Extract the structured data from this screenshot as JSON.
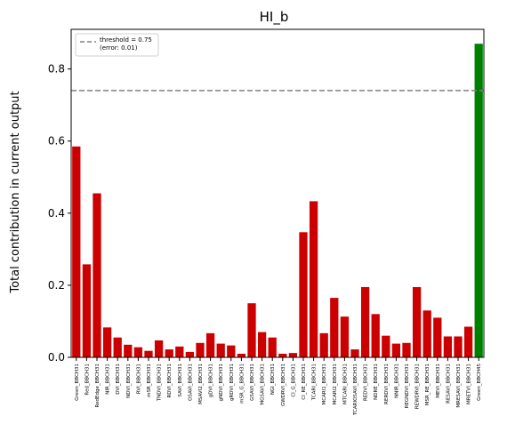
{
  "chart_data": {
    "type": "bar",
    "title": "HI_b",
    "xlabel": "",
    "ylabel": "Total contribution in current output",
    "ylim": [
      0,
      0.91
    ],
    "yticks": [
      0.0,
      0.2,
      0.4,
      0.6,
      0.8
    ],
    "ytick_labels": [
      "0.0",
      "0.2",
      "0.4",
      "0.6",
      "0.8"
    ],
    "grid": false,
    "legend_position": "top-left",
    "threshold": {
      "value": 0.74,
      "label_line1": "threshold = 0.75",
      "label_line2": "(error: 0.01)",
      "color": "#808080"
    },
    "colors": {
      "below": "#cc0000",
      "above": "#008000"
    },
    "categories": [
      "Green_BBCH31",
      "Red_BBCH31",
      "RedEdge_BBCH31",
      "NIR_BBCH31",
      "DVI_BBCH31",
      "NDVI_BBCH31",
      "RVI_BBCH31",
      "mSR_BBCH31",
      "TNDVI_BBCH31",
      "RDVI_BBCH31",
      "SAVI_BBCH31",
      "OSAVI_BBCH31",
      "MSAVI2_BBCH31",
      "gDVI_BBCH31",
      "gNDVI_BBCH31",
      "gRDVI_BBCH31",
      "mSR_G_BBCH31",
      "GSAVI_BBCH31",
      "MGSAVI_BBCH31",
      "NGI_BBCH31",
      "GWDRVI_BBCH31",
      "CI_G_BBCH31",
      "CI_RE_BBCH31",
      "TCARI_BBCH31",
      "MCARI1_BBCH31",
      "MCARI2_BBCH31",
      "MTCARI_BBCH31",
      "TCARIOSAVI_BBCH31",
      "REDVI_BBCH31",
      "NDRE_BBCH31",
      "RERDVI_BBCH31",
      "NNIR_BBCH31",
      "REGNDVI_BBCH31",
      "REWDRVI_BBCH31",
      "MSR_RE_BBCH31",
      "MEVI_BBCH31",
      "RESAVI_BBCH31",
      "MRESAVI_BBCH31",
      "MRETVI_BBCH31",
      "Green_BBCH45"
    ],
    "values": [
      0.585,
      0.258,
      0.455,
      0.083,
      0.055,
      0.035,
      0.028,
      0.018,
      0.047,
      0.022,
      0.03,
      0.015,
      0.04,
      0.067,
      0.038,
      0.033,
      0.01,
      0.15,
      0.07,
      0.055,
      0.01,
      0.012,
      0.347,
      0.433,
      0.067,
      0.165,
      0.113,
      0.022,
      0.195,
      0.12,
      0.06,
      0.038,
      0.04,
      0.195,
      0.13,
      0.11,
      0.058,
      0.058,
      0.085,
      0.87
    ]
  }
}
